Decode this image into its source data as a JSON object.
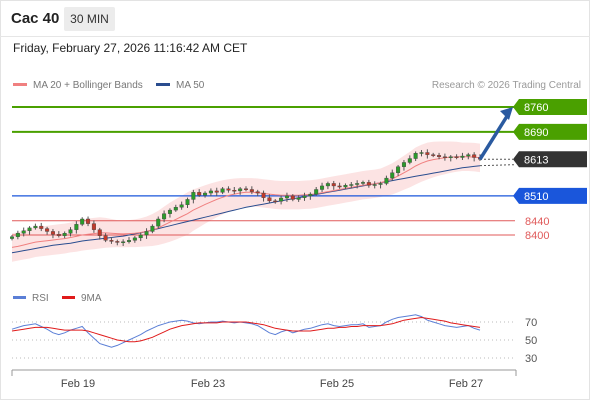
{
  "header": {
    "instrument": "Cac 40",
    "timeframe": "30 MIN",
    "datetime": "Friday, February 27, 2026 11:16:42 AM CET"
  },
  "legend": {
    "items": [
      {
        "label": "MA 20 + Bollinger Bands",
        "color": "#f08080"
      },
      {
        "label": "MA 50",
        "color": "#2a4d8f"
      }
    ],
    "copyright": "Research © 2026 Trading Central"
  },
  "rsi_legend": {
    "items": [
      {
        "label": "RSI",
        "color": "#5b7fd6"
      },
      {
        "label": "9MA",
        "color": "#e01b1b"
      }
    ]
  },
  "colors": {
    "resistance": "#4aa000",
    "current": "#333333",
    "support_major": "#1a56db",
    "support_minor": "#e05a5a",
    "arrow": "#2a5aa0"
  },
  "chart_data": [
    {
      "type": "line",
      "x_ticks": [
        "Feb 19",
        "Feb 23",
        "Feb 25",
        "Feb 27"
      ],
      "ylim": [
        8345,
        8790
      ],
      "levels": [
        {
          "label": "8760",
          "value": 8760,
          "kind": "resistance"
        },
        {
          "label": "8690",
          "value": 8690,
          "kind": "resistance"
        },
        {
          "label": "8613",
          "value": 8613,
          "kind": "current"
        },
        {
          "label": "8510",
          "value": 8510,
          "kind": "support_major"
        },
        {
          "label": "8440",
          "value": 8440,
          "kind": "support_minor"
        },
        {
          "label": "8400",
          "value": 8400,
          "kind": "support_minor"
        }
      ],
      "close": [
        8395,
        8405,
        8412,
        8420,
        8425,
        8418,
        8410,
        8402,
        8398,
        8405,
        8415,
        8430,
        8445,
        8432,
        8415,
        8398,
        8385,
        8382,
        8380,
        8381,
        8385,
        8392,
        8400,
        8410,
        8425,
        8445,
        8460,
        8470,
        8478,
        8485,
        8500,
        8520,
        8512,
        8518,
        8524,
        8520,
        8530,
        8526,
        8524,
        8530,
        8528,
        8522,
        8518,
        8505,
        8496,
        8495,
        8504,
        8510,
        8500,
        8505,
        8510,
        8515,
        8528,
        8538,
        8545,
        8538,
        8535,
        8540,
        8542,
        8545,
        8548,
        8540,
        8542,
        8545,
        8560,
        8575,
        8592,
        8604,
        8615,
        8630,
        8632,
        8626,
        8624,
        8620,
        8618,
        8620,
        8618,
        8622,
        8626,
        8618,
        8613
      ],
      "ma20": [
        8365,
        8368,
        8372,
        8376,
        8380,
        8382,
        8384,
        8386,
        8388,
        8390,
        8393,
        8396,
        8400,
        8402,
        8404,
        8406,
        8406,
        8405,
        8404,
        8403,
        8404,
        8405,
        8407,
        8410,
        8414,
        8420,
        8428,
        8436,
        8444,
        8452,
        8460,
        8470,
        8478,
        8486,
        8493,
        8500,
        8506,
        8511,
        8515,
        8518,
        8520,
        8520,
        8519,
        8517,
        8515,
        8513,
        8512,
        8512,
        8512,
        8512,
        8513,
        8514,
        8516,
        8519,
        8522,
        8525,
        8528,
        8531,
        8534,
        8537,
        8540,
        8542,
        8544,
        8547,
        8552,
        8558,
        8566,
        8575,
        8584,
        8594,
        8602,
        8608,
        8612,
        8615,
        8617,
        8619,
        8620,
        8620,
        8620,
        8619,
        8617
      ],
      "ma50": [
        8350,
        8353,
        8356,
        8359,
        8362,
        8365,
        8368,
        8371,
        8373,
        8375,
        8377,
        8380,
        8383,
        8385,
        8387,
        8389,
        8391,
        8393,
        8395,
        8397,
        8400,
        8403,
        8406,
        8410,
        8414,
        8418,
        8422,
        8426,
        8430,
        8434,
        8438,
        8442,
        8446,
        8450,
        8454,
        8458,
        8462,
        8466,
        8470,
        8474,
        8478,
        8481,
        8484,
        8487,
        8490,
        8493,
        8496,
        8499,
        8502,
        8505,
        8508,
        8511,
        8514,
        8517,
        8520,
        8523,
        8526,
        8529,
        8532,
        8535,
        8538,
        8541,
        8544,
        8547,
        8550,
        8553,
        8556,
        8559,
        8562,
        8565,
        8568,
        8571,
        8574,
        8577,
        8580,
        8583,
        8586,
        8589,
        8591,
        8593,
        8595
      ],
      "band_width": [
        40,
        40,
        41,
        42,
        42,
        42,
        42,
        42,
        42,
        42,
        42,
        43,
        44,
        44,
        44,
        44,
        42,
        40,
        38,
        38,
        38,
        39,
        40,
        42,
        45,
        48,
        52,
        55,
        57,
        58,
        60,
        58,
        56,
        54,
        52,
        50,
        48,
        46,
        44,
        42,
        40,
        40,
        40,
        40,
        40,
        40,
        40,
        40,
        40,
        40,
        40,
        40,
        40,
        40,
        40,
        40,
        40,
        40,
        40,
        40,
        40,
        40,
        40,
        40,
        42,
        44,
        46,
        48,
        50,
        52,
        52,
        52,
        50,
        48,
        46,
        44,
        42,
        40,
        40,
        40,
        40
      ]
    },
    {
      "type": "line",
      "series": [
        {
          "name": "RSI",
          "values": [
            62,
            64,
            66,
            67,
            68,
            65,
            62,
            58,
            56,
            58,
            61,
            63,
            65,
            58,
            52,
            46,
            44,
            42,
            44,
            47,
            50,
            53,
            56,
            60,
            63,
            66,
            68,
            70,
            71,
            72,
            71,
            69,
            68,
            69,
            70,
            70,
            71,
            70,
            69,
            70,
            69,
            68,
            66,
            62,
            58,
            56,
            59,
            61,
            58,
            60,
            62,
            63,
            65,
            67,
            68,
            66,
            65,
            66,
            67,
            67,
            68,
            64,
            65,
            66,
            70,
            73,
            75,
            76,
            77,
            78,
            76,
            72,
            70,
            68,
            66,
            65,
            64,
            65,
            66,
            63,
            61
          ]
        },
        {
          "name": "9MA",
          "values": [
            60,
            61,
            62,
            63,
            64,
            64,
            64,
            63,
            62,
            61,
            61,
            61,
            61,
            60,
            58,
            56,
            54,
            52,
            50,
            49,
            48,
            48,
            49,
            51,
            53,
            56,
            59,
            62,
            64,
            66,
            67,
            68,
            69,
            69,
            69,
            69,
            70,
            70,
            70,
            70,
            70,
            69,
            68,
            67,
            65,
            63,
            62,
            61,
            60,
            60,
            60,
            60,
            61,
            62,
            63,
            63,
            64,
            64,
            65,
            65,
            66,
            66,
            66,
            66,
            67,
            68,
            70,
            72,
            73,
            74,
            75,
            74,
            73,
            72,
            71,
            69,
            68,
            67,
            66,
            65,
            64
          ]
        }
      ],
      "levels": [
        70,
        50,
        30
      ],
      "ylim": [
        20,
        85
      ]
    }
  ]
}
